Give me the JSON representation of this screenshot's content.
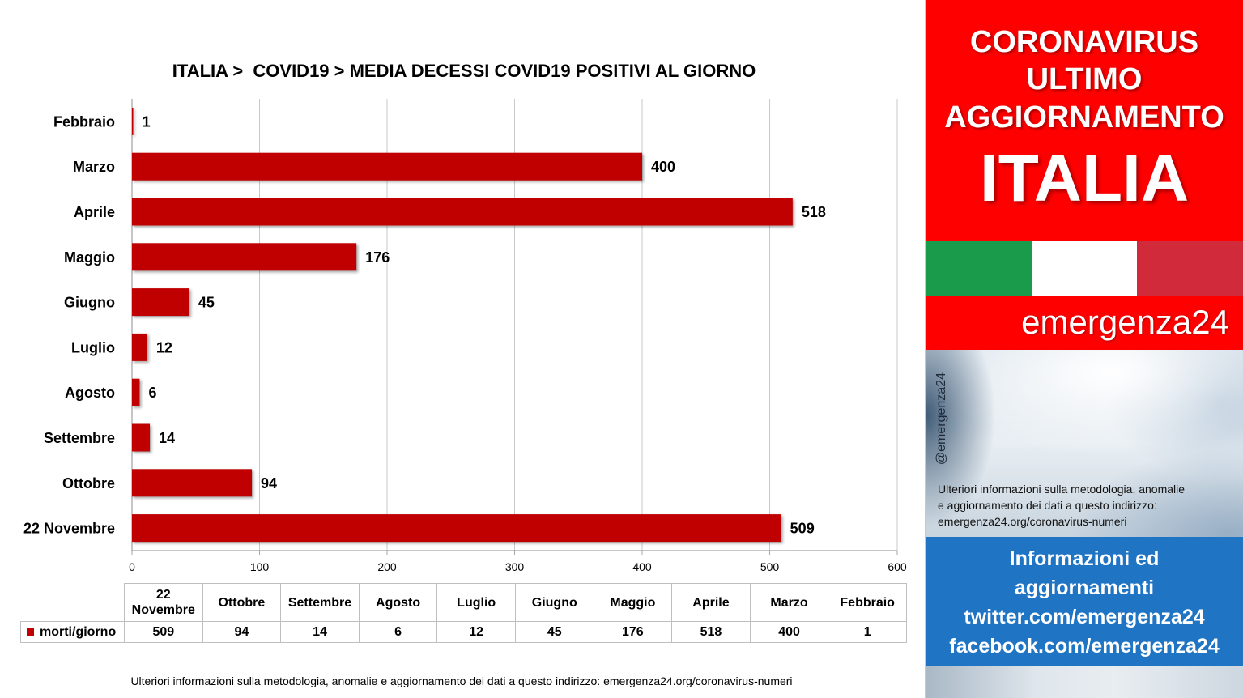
{
  "chart_data": {
    "type": "bar",
    "orientation": "horizontal",
    "title": "ITALIA >  COVID19 > MEDIA DECESSI COVID19 POSITIVI AL GIORNO",
    "categories": [
      "22 Novembre",
      "Ottobre",
      "Settembre",
      "Agosto",
      "Luglio",
      "Giugno",
      "Maggio",
      "Aprile",
      "Marzo",
      "Febbraio"
    ],
    "series": [
      {
        "name": "morti/giorno",
        "values": [
          509,
          94,
          14,
          6,
          12,
          45,
          176,
          518,
          400,
          1
        ],
        "color": "#C00000"
      }
    ],
    "xlim": [
      0,
      600
    ],
    "xticks": [
      0,
      100,
      200,
      300,
      400,
      500,
      600
    ],
    "grid": true,
    "data_labels": true,
    "data_table": true
  },
  "footer": {
    "note": "Ulteriori informazioni sulla metodologia, anomalie e aggiornamento dei dati a questo indirizzo: emergenza24.org/coronavirus-numeri"
  },
  "sidebar": {
    "headline": [
      "CORONAVIRUS",
      "ULTIMO",
      "AGGIORNAMENTO"
    ],
    "country": "ITALIA",
    "flag_colors": [
      "#1A9B4B",
      "#FFFFFF",
      "#D12A3A"
    ],
    "brand": "emergenza24",
    "handle": "@emergenza24",
    "info_lines": [
      "Ulteriori informazioni sulla metodologia, anomalie",
      "e aggiornamento dei dati a questo indirizzo:",
      "emergenza24.org/coronavirus-numeri"
    ],
    "social_lines": [
      "Informazioni ed",
      "aggiornamenti",
      "twitter.com/emergenza24",
      "facebook.com/emergenza24"
    ]
  }
}
